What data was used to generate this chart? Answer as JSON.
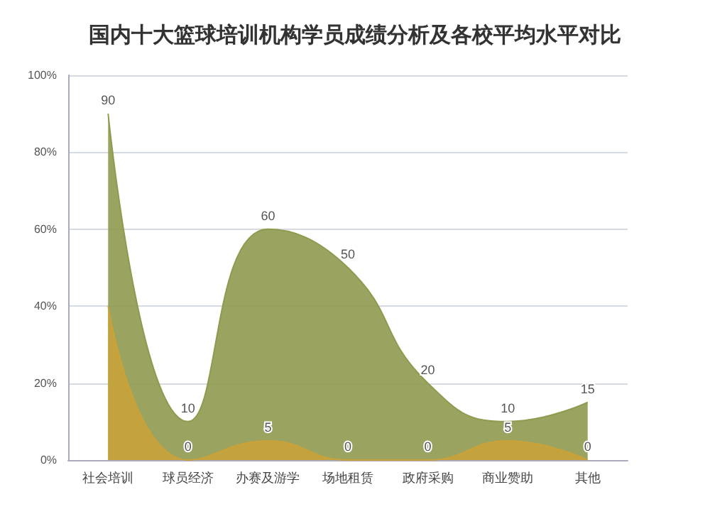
{
  "chart_data": {
    "type": "area",
    "title": "国内十大篮球培训机构学员成绩分析及各校平均水平对比",
    "categories": [
      "社会培训",
      "球员经济",
      "办赛及游学",
      "场地租赁",
      "政府采购",
      "商业赞助",
      "其他"
    ],
    "series": [
      {
        "color": "#8f9a4f",
        "values": [
          90,
          10,
          60,
          50,
          20,
          10,
          15
        ],
        "value_labels": [
          "90",
          "10",
          "60",
          "50",
          "20",
          "10",
          "15"
        ]
      },
      {
        "color": "#c9a23a",
        "values": [
          40,
          0,
          5,
          0,
          0,
          5,
          0
        ],
        "value_labels": [
          null,
          "0",
          "5",
          "0",
          "0",
          "5",
          "0"
        ]
      }
    ],
    "ylim": [
      0,
      100
    ],
    "yticks": [
      {
        "value": 0,
        "label": "0%"
      },
      {
        "value": 20,
        "label": "20%"
      },
      {
        "value": 40,
        "label": "40%"
      },
      {
        "value": 60,
        "label": "60%"
      },
      {
        "value": 80,
        "label": "80%"
      },
      {
        "value": 100,
        "label": "100%"
      }
    ],
    "grid": "y"
  }
}
